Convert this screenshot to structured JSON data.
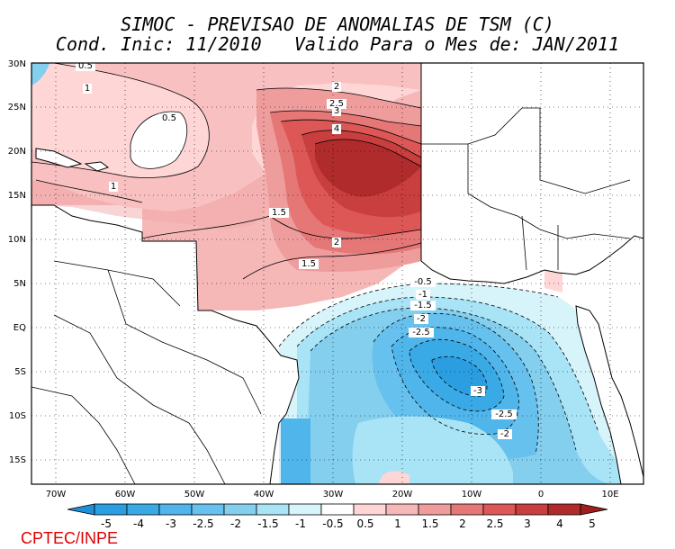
{
  "header": {
    "title_line1": "SIMOC - PREVISAO DE ANOMALIAS DE TSM (C)",
    "title_line2": "Cond. Inic: 11/2010   Valido Para o Mes de: JAN/2011"
  },
  "credit": "CPTEC/INPE",
  "map": {
    "variable": "Anomalia de TSM (C)",
    "lon_range": [
      -73,
      15
    ],
    "lat_range": [
      -18,
      30
    ],
    "lon_ticks": [
      "70W",
      "60W",
      "50W",
      "40W",
      "30W",
      "20W",
      "10W",
      "0",
      "10E"
    ],
    "lat_ticks": [
      "30N",
      "25N",
      "20N",
      "15N",
      "10N",
      "5N",
      "EQ",
      "5S",
      "10S",
      "15S"
    ],
    "contour_labels": [
      "0.5",
      "1",
      "0.5",
      "1",
      "2",
      "2.5",
      "3",
      "4",
      "1.5",
      "2",
      "1.5",
      "-0.5",
      "-1",
      "-1.5",
      "-2",
      "-2.5",
      "-3",
      "-2.5",
      "-2"
    ],
    "max_anomaly_marker": "warm core near 18N 33W"
  },
  "colorbar": {
    "levels": [
      "-5",
      "-4",
      "-3",
      "-2.5",
      "-2",
      "-1.5",
      "-1",
      "-0.5",
      "0.5",
      "1",
      "1.5",
      "2",
      "2.5",
      "3",
      "4",
      "5"
    ],
    "colors": [
      "#1f8fd8",
      "#2a9ee0",
      "#3aaae6",
      "#4fb5ea",
      "#67c1ee",
      "#84ceee",
      "#a8e3f6",
      "#d7f4fb",
      "#ffffff",
      "#ffd6d6",
      "#f6b7b7",
      "#ee9c9c",
      "#e57777",
      "#dd5757",
      "#c93f3f",
      "#b02b2b",
      "#9d1f1f"
    ]
  }
}
